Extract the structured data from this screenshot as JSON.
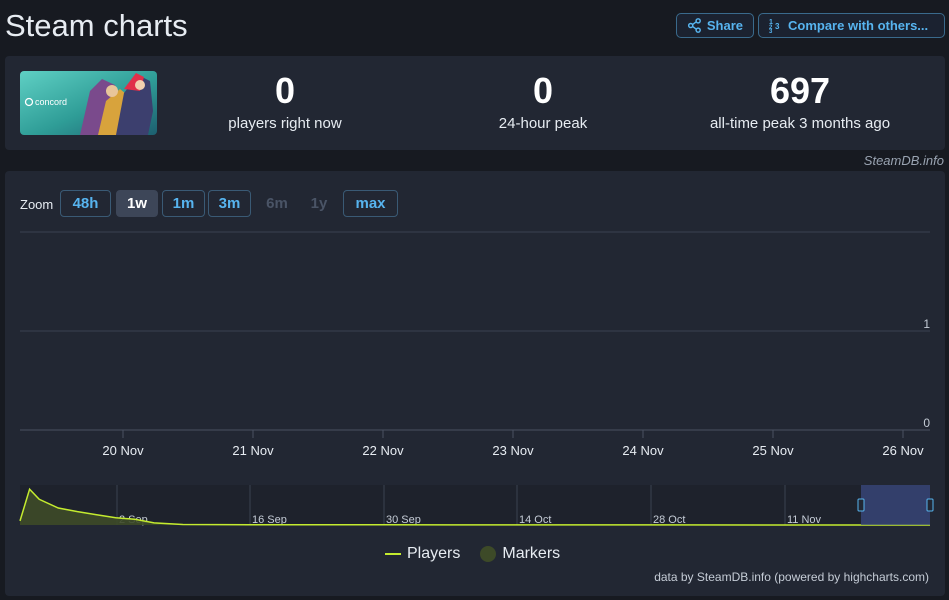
{
  "header": {
    "title": "Steam charts",
    "share_label": "Share",
    "compare_label": "Compare with others..."
  },
  "stats": {
    "players_now": {
      "value": "0",
      "label": "players right now"
    },
    "peak_24h": {
      "value": "0",
      "label": "24-hour peak"
    },
    "all_time": {
      "value": "697",
      "label": "all-time peak 3 months ago"
    }
  },
  "credit": "SteamDB.info",
  "zoom": {
    "label": "Zoom",
    "options": [
      "48h",
      "1w",
      "1m",
      "3m",
      "6m",
      "1y",
      "max"
    ],
    "selected": "1w",
    "disabled": [
      "6m",
      "1y"
    ]
  },
  "chart_data": {
    "type": "line",
    "main": {
      "x_ticks": [
        "20 Nov",
        "21 Nov",
        "22 Nov",
        "23 Nov",
        "24 Nov",
        "25 Nov",
        "26 Nov"
      ],
      "y_ticks": [
        0,
        1
      ],
      "ylim": [
        0,
        2
      ],
      "series": [
        {
          "name": "Players",
          "values": [
            0,
            0,
            0,
            0,
            0,
            0,
            0,
            0
          ]
        }
      ]
    },
    "navigator": {
      "x_ticks": [
        "2 Sep",
        "16 Sep",
        "30 Sep",
        "14 Oct",
        "28 Oct",
        "11 Nov"
      ],
      "ylim": [
        0,
        700
      ],
      "series_points": [
        [
          "Aug 23",
          80
        ],
        [
          "Aug 24",
          697
        ],
        [
          "Aug 25",
          500
        ],
        [
          "Aug 27",
          330
        ],
        [
          "Aug 29",
          260
        ],
        [
          "Aug 31",
          200
        ],
        [
          "Sep 2",
          140
        ],
        [
          "Sep 4",
          110
        ],
        [
          "Sep 6",
          40
        ],
        [
          "Sep 9",
          10
        ],
        [
          "Sep 16",
          5
        ],
        [
          "Sep 23",
          4
        ],
        [
          "Sep 30",
          3
        ],
        [
          "Oct 7",
          2
        ],
        [
          "Oct 14",
          1
        ],
        [
          "Oct 28",
          1
        ],
        [
          "Nov 11",
          0
        ],
        [
          "Nov 26",
          0
        ]
      ],
      "selected_range": [
        "19 Nov",
        "26 Nov"
      ]
    },
    "legend": [
      "Players",
      "Markers"
    ],
    "colors": {
      "players": "#c4eb2f",
      "markers": "#3d4a28"
    }
  },
  "footer": "data by SteamDB.info (powered by highcharts.com)"
}
